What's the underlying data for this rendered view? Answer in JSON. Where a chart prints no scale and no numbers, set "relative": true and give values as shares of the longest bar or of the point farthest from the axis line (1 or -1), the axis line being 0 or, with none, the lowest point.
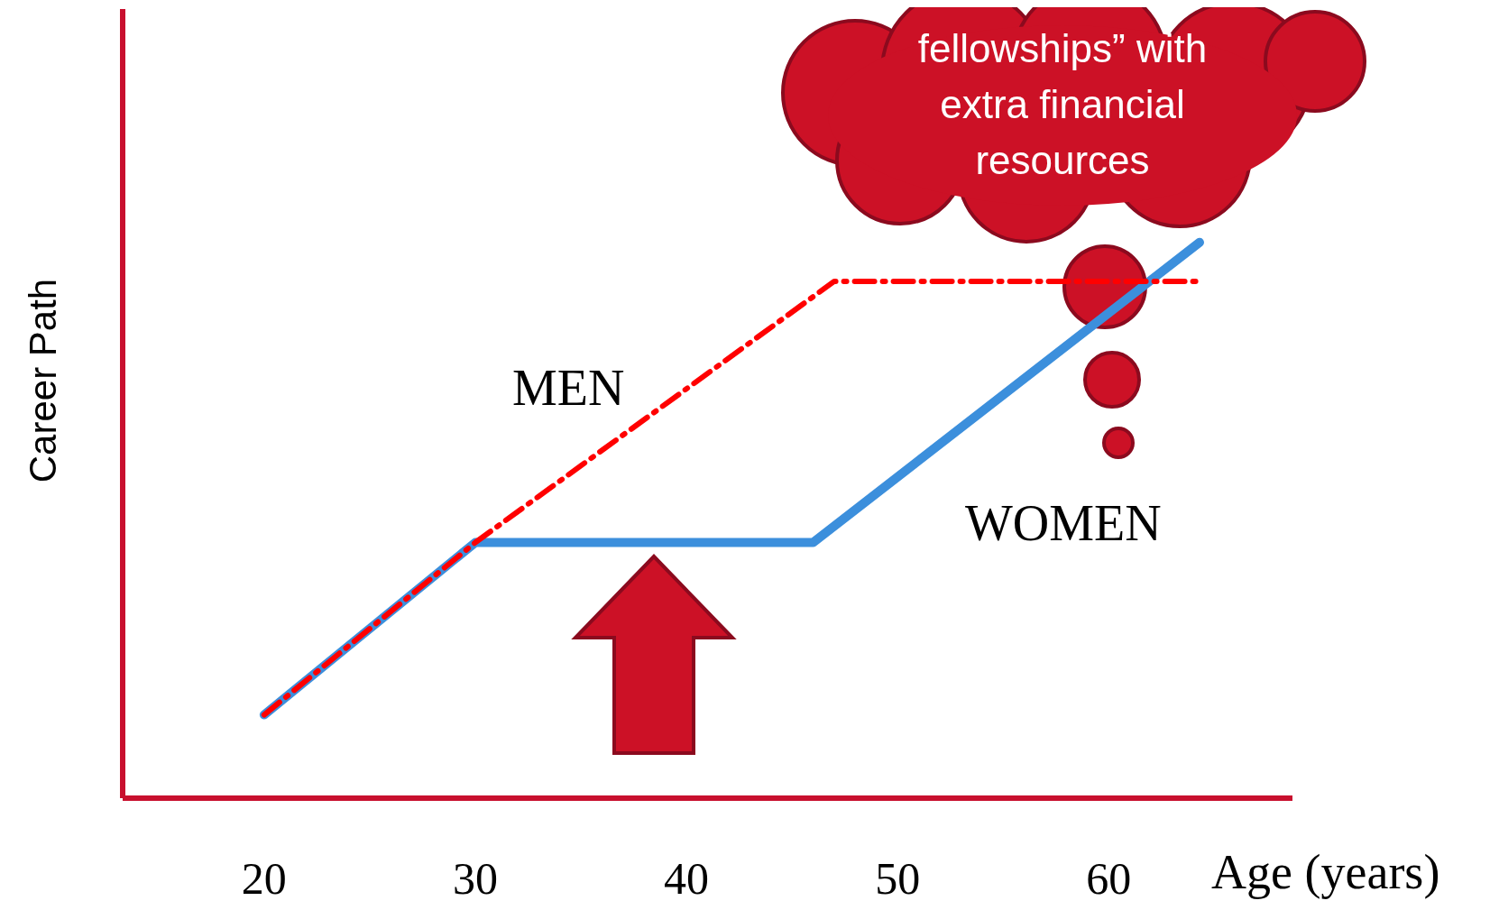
{
  "chart_data": {
    "type": "line",
    "relative": true,
    "xlabel": "Age (years)",
    "ylabel": "Career Path",
    "xlim": [
      13.3,
      68.7
    ],
    "xticks": [
      20,
      30,
      40,
      50,
      60
    ],
    "legend": false,
    "grid": false,
    "marker": "none",
    "annotations": [
      "fellowships” with extra financial resources"
    ],
    "series": [
      {
        "name": "MEN",
        "color": "#ff0000",
        "line_style": "dashed",
        "x": [
          20,
          30,
          47,
          64.3
        ],
        "values": [
          0.15,
          0.46,
          0.93,
          0.93
        ]
      },
      {
        "name": "WOMEN",
        "color": "#3c8fdc",
        "line_style": "solid",
        "x": [
          20,
          30,
          46,
          64.3
        ],
        "values": [
          0.15,
          0.46,
          0.46,
          1
        ]
      }
    ]
  }
}
